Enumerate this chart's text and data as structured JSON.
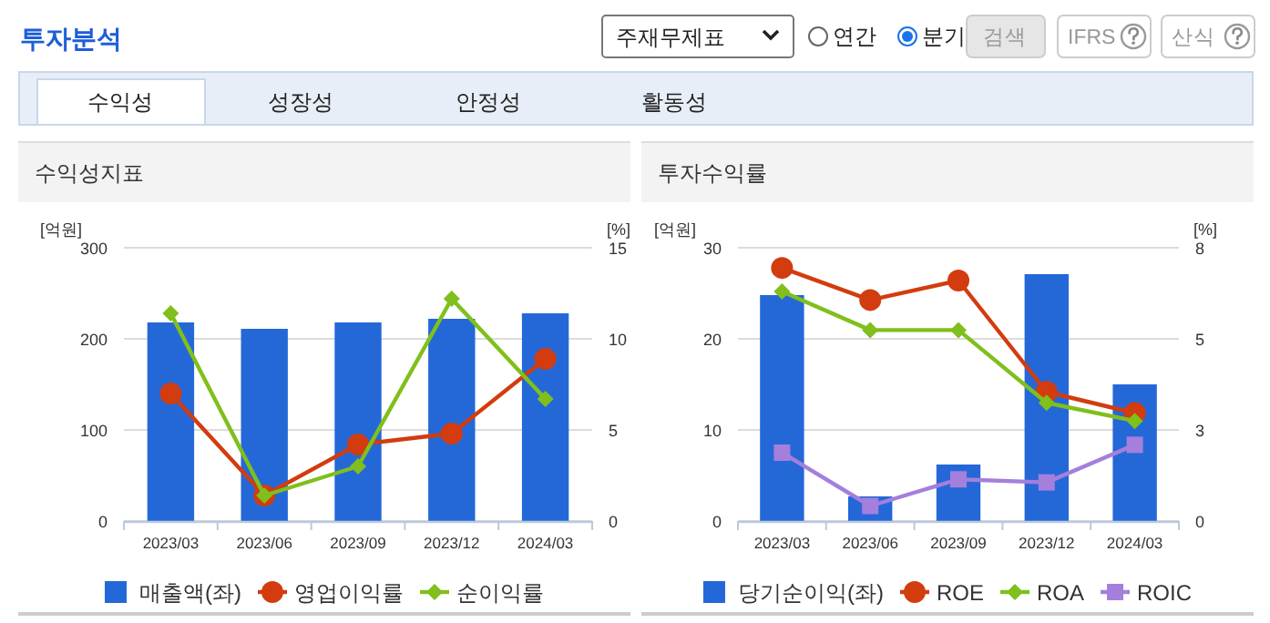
{
  "chart_data": [
    {
      "type": "other",
      "title": "투자분석",
      "annotations": [
        "주재무제표",
        "연간",
        "분기",
        "검색",
        "IFRS",
        "산식",
        "수익성",
        "성장성",
        "안정성",
        "활동성"
      ]
    },
    {
      "type": "bar",
      "title": "수익성지표",
      "categories": [
        "2023/03",
        "2023/06",
        "2023/09",
        "2023/12",
        "2024/03"
      ],
      "ylabel": "[억원]",
      "y2label": "[%]",
      "ylim": [
        0,
        300
      ],
      "yticks": [
        0,
        100,
        200,
        300
      ],
      "y2lim": [
        0,
        15
      ],
      "y2ticks": [
        0,
        5,
        10,
        15
      ],
      "grid": "y",
      "legend": "bottom",
      "series": [
        {
          "name": "매출액(좌)",
          "type": "bar",
          "color": "#2468d8",
          "values": [
            218,
            211,
            218,
            222,
            228
          ]
        },
        {
          "name": "영업이익률",
          "type": "line",
          "axis": "y2",
          "marker": "circle",
          "color": "#d23c0f",
          "values": [
            7.0,
            1.4,
            4.2,
            4.8,
            8.9
          ]
        },
        {
          "name": "순이익률",
          "type": "line",
          "axis": "y2",
          "marker": "diamond",
          "color": "#80bf1c",
          "values": [
            11.4,
            1.4,
            3.0,
            12.2,
            6.7
          ]
        }
      ]
    },
    {
      "type": "bar",
      "title": "투자수익률",
      "categories": [
        "2023/03",
        "2023/06",
        "2023/09",
        "2023/12",
        "2024/03"
      ],
      "ylabel": "[억원]",
      "y2label": "[%]",
      "ylim": [
        0,
        30
      ],
      "yticks": [
        0,
        10,
        20,
        30
      ],
      "y2lim": [
        0,
        8
      ],
      "y2ticks": [
        0,
        {
          "value": 2.667,
          "label": "3"
        },
        {
          "value": 5.333,
          "label": "5"
        },
        8
      ],
      "grid": "y",
      "legend": "bottom",
      "series": [
        {
          "name": "당기순이익(좌)",
          "type": "bar",
          "color": "#2468d8",
          "values": [
            24.8,
            2.7,
            6.2,
            27.1,
            15.0
          ]
        },
        {
          "name": "ROE",
          "type": "line",
          "axis": "y2",
          "marker": "circle",
          "color": "#d23c0f",
          "values": [
            7.41,
            6.47,
            7.04,
            3.78,
            3.16
          ]
        },
        {
          "name": "ROA",
          "type": "line",
          "axis": "y2",
          "marker": "diamond",
          "color": "#80bf1c",
          "values": [
            6.72,
            5.59,
            5.59,
            3.46,
            2.93
          ]
        },
        {
          "name": "ROIC",
          "type": "line",
          "axis": "y2",
          "marker": "square",
          "color": "#a47fdc",
          "values": [
            2.0,
            0.44,
            1.22,
            1.13,
            2.23
          ]
        }
      ]
    }
  ]
}
